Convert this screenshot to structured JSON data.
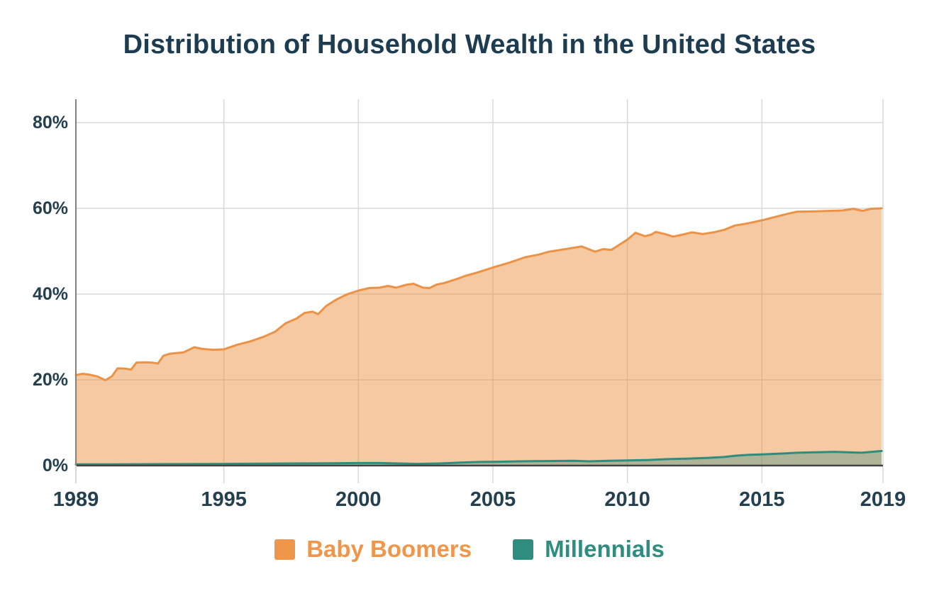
{
  "title": "Distribution of Household Wealth in the United States",
  "colors": {
    "background": "#ffffff",
    "title": "#1e3c50",
    "tick_labels": "#24404f",
    "grid": "#d9d9d9",
    "y_axis": "#828282",
    "baseline": "#424242",
    "boomer_line": "#ec9246",
    "boomer_fill": "rgba(234,143,60,0.47)",
    "millennial_line": "#2e8d7f",
    "millennial_fill": "rgba(46,141,127,0.35)"
  },
  "chart_data": {
    "type": "area",
    "title": "Distribution of Household Wealth in the United States",
    "xlabel": "",
    "ylabel": "",
    "grid": true,
    "x_axis": {
      "range": [
        1989.5,
        2019.5
      ],
      "ticks": [
        1989,
        1995,
        2000,
        2005,
        2010,
        2015,
        2019
      ],
      "tick_labels": [
        "1989",
        "1995",
        "2000",
        "2005",
        "2010",
        "2015",
        "2019"
      ]
    },
    "y_axis": {
      "range": [
        0,
        85
      ],
      "unit": "%",
      "ticks": [
        0,
        20,
        40,
        60,
        80
      ],
      "tick_labels": [
        "0%",
        "20%",
        "40%",
        "60%",
        "80%"
      ]
    },
    "legend": {
      "position": "bottom",
      "entries": [
        "Baby Boomers",
        "Millennials"
      ]
    },
    "series": [
      {
        "name": "Baby Boomers",
        "legend_color": "#f0964a",
        "line_color": "#ec9246",
        "fill_color": "rgba(234,143,60,0.47)",
        "unit": "% share of household wealth",
        "points": [
          [
            1989.5,
            21.1
          ],
          [
            1989.75,
            21.4
          ],
          [
            1990.0,
            21.2
          ],
          [
            1990.3,
            20.8
          ],
          [
            1990.6,
            19.9
          ],
          [
            1990.85,
            20.9
          ],
          [
            1991.05,
            22.7
          ],
          [
            1991.35,
            22.6
          ],
          [
            1991.55,
            22.4
          ],
          [
            1991.75,
            24.0
          ],
          [
            1992.1,
            24.1
          ],
          [
            1992.35,
            24.0
          ],
          [
            1992.55,
            23.8
          ],
          [
            1992.75,
            25.6
          ],
          [
            1993.0,
            26.1
          ],
          [
            1993.5,
            26.4
          ],
          [
            1993.9,
            27.6
          ],
          [
            1994.2,
            27.2
          ],
          [
            1994.6,
            27.0
          ],
          [
            1995.0,
            27.1
          ],
          [
            1995.5,
            28.2
          ],
          [
            1996.0,
            29.0
          ],
          [
            1996.5,
            30.1
          ],
          [
            1996.9,
            31.2
          ],
          [
            1997.3,
            33.2
          ],
          [
            1997.7,
            34.3
          ],
          [
            1998.0,
            35.6
          ],
          [
            1998.3,
            35.9
          ],
          [
            1998.5,
            35.3
          ],
          [
            1998.8,
            37.2
          ],
          [
            1999.2,
            38.8
          ],
          [
            1999.6,
            40.0
          ],
          [
            2000.05,
            40.9
          ],
          [
            2000.4,
            41.4
          ],
          [
            2000.8,
            41.5
          ],
          [
            2001.1,
            41.9
          ],
          [
            2001.4,
            41.5
          ],
          [
            2001.8,
            42.2
          ],
          [
            2002.05,
            42.4
          ],
          [
            2002.4,
            41.5
          ],
          [
            2002.65,
            41.4
          ],
          [
            2002.9,
            42.2
          ],
          [
            2003.2,
            42.6
          ],
          [
            2003.7,
            43.6
          ],
          [
            2004.0,
            44.3
          ],
          [
            2004.4,
            45.0
          ],
          [
            2005.0,
            46.2
          ],
          [
            2005.6,
            47.3
          ],
          [
            2006.2,
            48.6
          ],
          [
            2006.7,
            49.2
          ],
          [
            2007.1,
            49.9
          ],
          [
            2007.4,
            50.2
          ],
          [
            2007.7,
            50.5
          ],
          [
            2008.3,
            51.1
          ],
          [
            2008.8,
            49.9
          ],
          [
            2009.1,
            50.5
          ],
          [
            2009.4,
            50.3
          ],
          [
            2009.7,
            51.5
          ],
          [
            2010.0,
            52.7
          ],
          [
            2010.3,
            54.3
          ],
          [
            2010.65,
            53.5
          ],
          [
            2010.9,
            53.9
          ],
          [
            2011.05,
            54.5
          ],
          [
            2011.4,
            54.0
          ],
          [
            2011.7,
            53.4
          ],
          [
            2012.0,
            53.8
          ],
          [
            2012.4,
            54.4
          ],
          [
            2012.8,
            54.0
          ],
          [
            2013.2,
            54.4
          ],
          [
            2013.6,
            55.0
          ],
          [
            2014.0,
            56.0
          ],
          [
            2014.4,
            56.4
          ],
          [
            2015.0,
            57.2
          ],
          [
            2015.5,
            58.0
          ],
          [
            2016.0,
            58.8
          ],
          [
            2016.3,
            59.2
          ],
          [
            2017.0,
            59.3
          ],
          [
            2017.5,
            59.4
          ],
          [
            2018.0,
            59.5
          ],
          [
            2018.4,
            59.9
          ],
          [
            2018.75,
            59.4
          ],
          [
            2019.05,
            59.9
          ],
          [
            2019.45,
            60.0
          ]
        ]
      },
      {
        "name": "Millennials",
        "legend_color": "#2e8d7f",
        "line_color": "#2e8d7f",
        "fill_color": "rgba(46,141,127,0.35)",
        "unit": "% share of household wealth",
        "points": [
          [
            1989.5,
            0.3
          ],
          [
            1991.0,
            0.3
          ],
          [
            1993.0,
            0.35
          ],
          [
            1995.0,
            0.4
          ],
          [
            1996.5,
            0.45
          ],
          [
            1997.5,
            0.5
          ],
          [
            1999.0,
            0.55
          ],
          [
            2000.0,
            0.6
          ],
          [
            2000.8,
            0.6
          ],
          [
            2001.5,
            0.5
          ],
          [
            2002.2,
            0.4
          ],
          [
            2003.0,
            0.5
          ],
          [
            2003.8,
            0.7
          ],
          [
            2004.5,
            0.85
          ],
          [
            2005.2,
            0.9
          ],
          [
            2006.0,
            1.0
          ],
          [
            2007.0,
            1.05
          ],
          [
            2008.0,
            1.1
          ],
          [
            2008.6,
            1.0
          ],
          [
            2009.3,
            1.1
          ],
          [
            2010.0,
            1.2
          ],
          [
            2010.8,
            1.3
          ],
          [
            2011.5,
            1.5
          ],
          [
            2012.2,
            1.6
          ],
          [
            2013.0,
            1.8
          ],
          [
            2013.6,
            2.0
          ],
          [
            2014.0,
            2.3
          ],
          [
            2014.5,
            2.5
          ],
          [
            2015.0,
            2.6
          ],
          [
            2015.7,
            2.8
          ],
          [
            2016.3,
            3.0
          ],
          [
            2017.0,
            3.1
          ],
          [
            2017.7,
            3.2
          ],
          [
            2018.2,
            3.1
          ],
          [
            2018.7,
            3.0
          ],
          [
            2019.1,
            3.2
          ],
          [
            2019.45,
            3.4
          ]
        ]
      }
    ]
  }
}
